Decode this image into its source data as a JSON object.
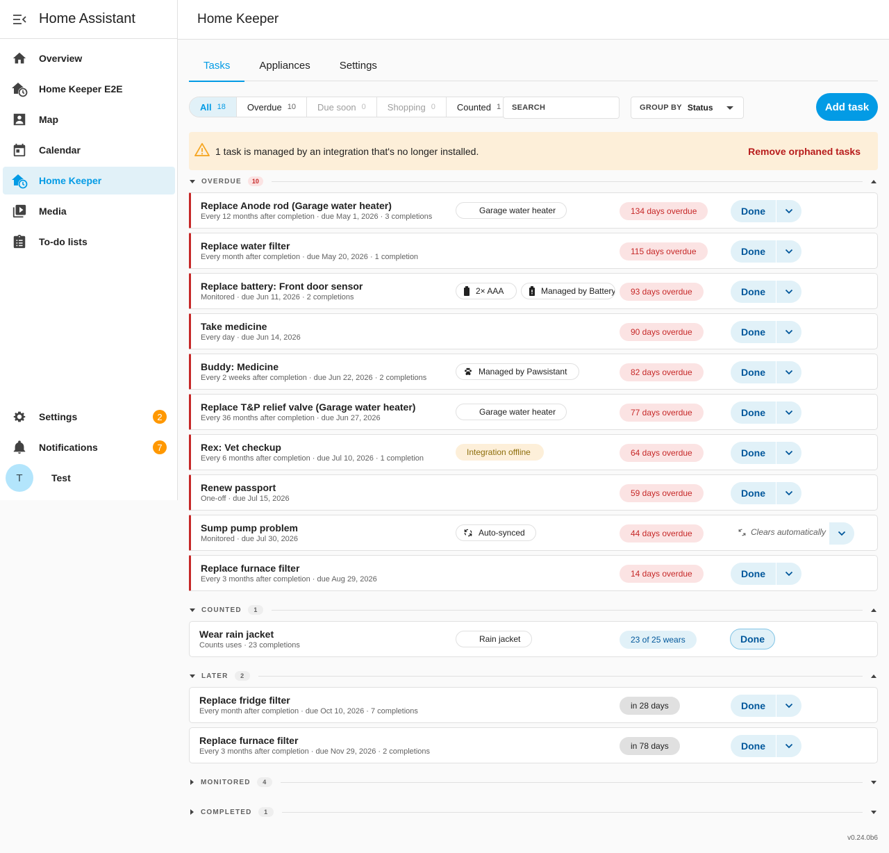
{
  "app": {
    "title": "Home Assistant"
  },
  "sidebar": {
    "items": [
      {
        "label": "Overview",
        "icon": "home-icon"
      },
      {
        "label": "Home Keeper E2E",
        "icon": "home-clock-icon"
      },
      {
        "label": "Map",
        "icon": "map-icon"
      },
      {
        "label": "Calendar",
        "icon": "calendar-icon"
      },
      {
        "label": "Home Keeper",
        "icon": "home-clock-icon",
        "active": true
      },
      {
        "label": "Media",
        "icon": "media-icon"
      },
      {
        "label": "To-do lists",
        "icon": "clipboard-list-icon"
      }
    ],
    "settings": {
      "label": "Settings",
      "badge": "2"
    },
    "notifications": {
      "label": "Notifications",
      "badge": "7"
    },
    "user": {
      "initial": "T",
      "name": "Test"
    }
  },
  "page": {
    "title": "Home Keeper"
  },
  "tabs": [
    {
      "label": "Tasks",
      "active": true
    },
    {
      "label": "Appliances"
    },
    {
      "label": "Settings"
    }
  ],
  "filters": [
    {
      "label": "All",
      "count": "18",
      "state": "active"
    },
    {
      "label": "Overdue",
      "count": "10",
      "state": "normal"
    },
    {
      "label": "Due soon",
      "count": "0",
      "state": "muted"
    },
    {
      "label": "Shopping",
      "count": "0",
      "state": "muted"
    },
    {
      "label": "Counted",
      "count": "1",
      "state": "normal"
    }
  ],
  "search": {
    "placeholder": "SEARCH"
  },
  "group_by": {
    "label": "GROUP BY",
    "value": "Status"
  },
  "add_task": {
    "label": "Add task"
  },
  "warning": {
    "text": "1 task is managed by an integration that's no longer installed.",
    "action": "Remove orphaned tasks"
  },
  "sections": {
    "overdue": {
      "label": "OVERDUE",
      "count": "10"
    },
    "counted": {
      "label": "COUNTED",
      "count": "1"
    },
    "later": {
      "label": "LATER",
      "count": "2"
    },
    "monitored": {
      "label": "MONITORED",
      "count": "4"
    },
    "completed": {
      "label": "COMPLETED",
      "count": "1"
    }
  },
  "done_label": "Done",
  "overdue_tasks": [
    {
      "title": "Replace Anode rod (Garage water heater)",
      "sub": "Every 12 months after completion · due May 1, 2026 · 3 completions",
      "status": "134 days overdue",
      "pills": [
        {
          "text": "Garage water heater",
          "icon": "",
          "width": 160
        }
      ]
    },
    {
      "title": "Replace water filter",
      "sub": "Every month after completion · due May 20, 2026 · 1 completion",
      "status": "115 days overdue",
      "pills": []
    },
    {
      "title": "Replace battery: Front door sensor",
      "sub": "Monitored · due Jun 11, 2026 · 2 completions",
      "status": "93 days overdue",
      "pills": [
        {
          "text": "2× AAA",
          "icon": "battery-icon",
          "width": 88
        },
        {
          "text": "Managed by Battery Notes",
          "icon": "battery-alert-icon",
          "width": 136
        }
      ]
    },
    {
      "title": "Take medicine",
      "sub": "Every day · due Jun 14, 2026",
      "status": "90 days overdue",
      "pills": []
    },
    {
      "title": "Buddy: Medicine",
      "sub": "Every 2 weeks after completion · due Jun 22, 2026 · 2 completions",
      "status": "82 days overdue",
      "pills": [
        {
          "text": "Managed by Pawsistant",
          "icon": "paw-icon",
          "width": 178
        }
      ]
    },
    {
      "title": "Replace T&P relief valve (Garage water heater)",
      "sub": "Every 36 months after completion · due Jun 27, 2026",
      "status": "77 days overdue",
      "pills": [
        {
          "text": "Garage water heater",
          "icon": "",
          "width": 160
        }
      ]
    },
    {
      "title": "Rex: Vet checkup",
      "sub": "Every 6 months after completion · due Jul 10, 2026 · 1 completion",
      "status": "64 days overdue",
      "pills": [
        {
          "text": "Integration offline",
          "icon": "",
          "width": 127,
          "warn": true
        }
      ]
    },
    {
      "title": "Renew passport",
      "sub": "One-off · due Jul 15, 2026",
      "status": "59 days overdue",
      "pills": []
    },
    {
      "title": "Sump pump problem",
      "sub": "Monitored · due Jul 30, 2026",
      "status": "44 days overdue",
      "pills": [
        {
          "text": "Auto-synced",
          "icon": "sync-icon",
          "width": 116
        }
      ],
      "auto": "Clears automatically"
    },
    {
      "title": "Replace furnace filter",
      "sub": "Every 3 months after completion · due Aug 29, 2026",
      "status": "14 days overdue",
      "pills": []
    }
  ],
  "counted_tasks": [
    {
      "title": "Wear rain jacket",
      "sub": "Counts uses · 23 completions",
      "status": "23 of 25 wears",
      "pills": [
        {
          "text": "Rain jacket",
          "icon": "",
          "width": 110
        }
      ]
    }
  ],
  "later_tasks": [
    {
      "title": "Replace fridge filter",
      "sub": "Every month after completion · due Oct 10, 2026 · 7 completions",
      "status": "in 28 days",
      "pills": []
    },
    {
      "title": "Replace furnace filter",
      "sub": "Every 3 months after completion · due Nov 29, 2026 · 2 completions",
      "status": "in 78 days",
      "pills": []
    }
  ],
  "version": "v0.24.0b6"
}
